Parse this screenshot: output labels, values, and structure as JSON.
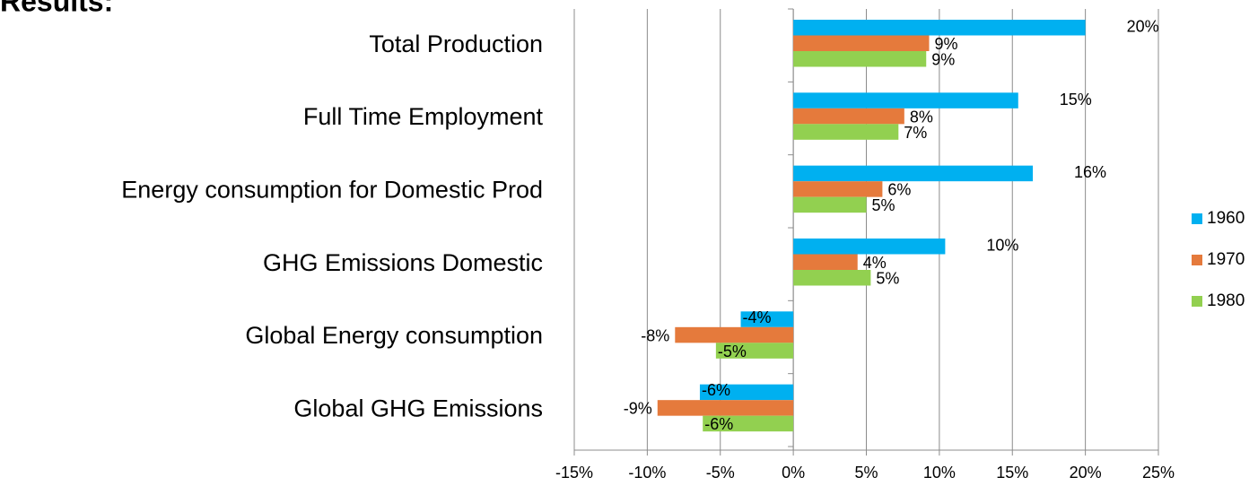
{
  "chart_data": {
    "type": "bar",
    "orientation": "horizontal",
    "title": "Results:",
    "categories": [
      "Total Production",
      "Full Time Employment",
      "Energy consumption for Domestic Prod",
      "GHG Emissions Domestic",
      "Global Energy consumption",
      "Global GHG Emissions"
    ],
    "series": [
      {
        "name": "1960",
        "color": "#00b0f0",
        "values": [
          20.0,
          15.4,
          16.4,
          10.4,
          -3.6,
          -6.4
        ],
        "value_labels": [
          "20%",
          "15%",
          "16%",
          "10%",
          "-4%",
          "-6%"
        ]
      },
      {
        "name": "1970",
        "color": "#e57a3c",
        "values": [
          9.3,
          7.6,
          6.1,
          4.4,
          -8.1,
          -9.3
        ],
        "value_labels": [
          "9%",
          "8%",
          "6%",
          "4%",
          "-8%",
          "-9%"
        ]
      },
      {
        "name": "1980",
        "color": "#92d050",
        "values": [
          9.1,
          7.2,
          5.0,
          5.3,
          -5.3,
          -6.2
        ],
        "value_labels": [
          "9%",
          "7%",
          "5%",
          "5%",
          "-5%",
          "-6%"
        ]
      }
    ],
    "xlim": [
      -15,
      25
    ],
    "xticks": [
      {
        "value": -15,
        "label": "-15%"
      },
      {
        "value": -10,
        "label": "-10%"
      },
      {
        "value": -5,
        "label": "-5%"
      },
      {
        "value": 0,
        "label": "0%"
      },
      {
        "value": 5,
        "label": "5%"
      },
      {
        "value": 10,
        "label": "10%"
      },
      {
        "value": 15,
        "label": "15%"
      },
      {
        "value": 20,
        "label": "20%"
      },
      {
        "value": 25,
        "label": "25%"
      }
    ],
    "grid": true,
    "legend": "right"
  }
}
